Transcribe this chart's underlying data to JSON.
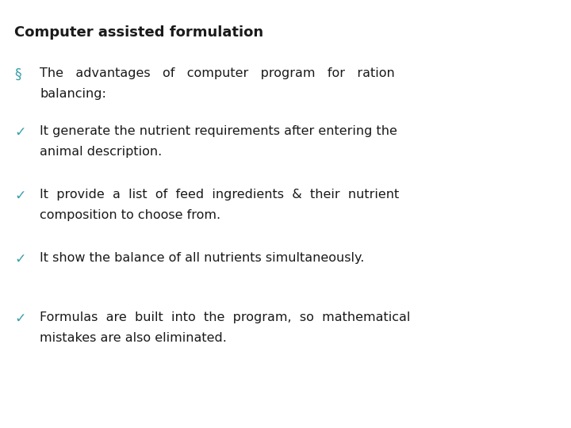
{
  "title": "Computer assisted formulation",
  "title_color": "#1a1a1a",
  "title_fontsize": 13,
  "background_color": "#ffffff",
  "bullet_color": "#3a9eaa",
  "check_color": "#3a9eaa",
  "text_color": "#1a1a1a",
  "body_fontsize": 11.5,
  "section_bullet": "§",
  "section_line1": "The   advantages   of   computer   program   for   ration",
  "section_line2": "balancing:",
  "items": [
    {
      "line1": "It generate the nutrient requirements after entering the",
      "line2": "animal description."
    },
    {
      "line1": "It  provide  a  list  of  feed  ingredients  &  their  nutrient",
      "line2": "composition to choose from."
    },
    {
      "line1": "It show the balance of all nutrients simultaneously.",
      "line2": null
    },
    {
      "line1": "Formulas  are  built  into  the  program,  so  mathematical",
      "line2": "mistakes are also eliminated."
    }
  ]
}
